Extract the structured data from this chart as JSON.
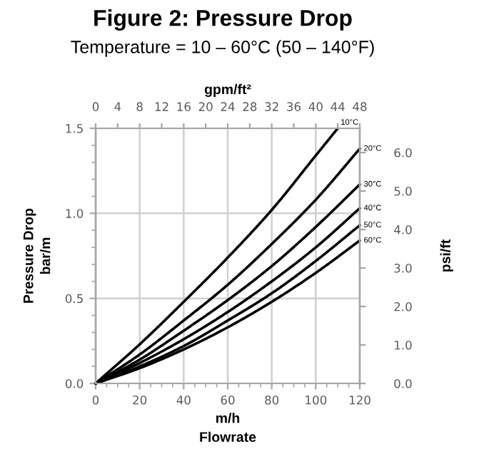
{
  "chart_data": {
    "type": "line",
    "title": "Figure 2: Pressure Drop",
    "subtitle": "Temperature = 10 – 60°C (50 – 140°F)",
    "xlabel": "m/h\nFlowrate",
    "ylabel": "Pressure Drop\nbar/m",
    "y2label": "psi/ft",
    "x2label": "gpm/ft²",
    "x": [
      0,
      20,
      40,
      60,
      80,
      100,
      120
    ],
    "series": [
      {
        "name": "10°C",
        "color": "#000000",
        "x": [
          0,
          20,
          40,
          60,
          80,
          100,
          110
        ],
        "values": [
          0,
          0.23,
          0.48,
          0.74,
          1.02,
          1.34,
          1.5
        ]
      },
      {
        "name": "20°C",
        "color": "#000000",
        "values": [
          0,
          0.17,
          0.37,
          0.58,
          0.82,
          1.08,
          1.38
        ]
      },
      {
        "name": "30°C",
        "color": "#000000",
        "values": [
          0,
          0.14,
          0.31,
          0.49,
          0.69,
          0.92,
          1.17
        ]
      },
      {
        "name": "40°C",
        "color": "#000000",
        "values": [
          0,
          0.12,
          0.26,
          0.42,
          0.6,
          0.8,
          1.03
        ]
      },
      {
        "name": "50°C",
        "color": "#000000",
        "values": [
          0,
          0.1,
          0.22,
          0.37,
          0.53,
          0.72,
          0.93
        ]
      },
      {
        "name": "60°C",
        "color": "#000000",
        "values": [
          0,
          0.09,
          0.2,
          0.33,
          0.48,
          0.65,
          0.84
        ]
      }
    ],
    "xlim": [
      0,
      120
    ],
    "xticks": [
      0,
      {
        "value": 5,
        "label": null
      },
      {
        "value": 10,
        "label": null
      },
      {
        "value": 15,
        "label": null
      },
      20,
      {
        "value": 25,
        "label": null
      },
      {
        "value": 30,
        "label": null
      },
      {
        "value": 35,
        "label": null
      },
      40,
      {
        "value": 45,
        "label": null
      },
      {
        "value": 50,
        "label": null
      },
      {
        "value": 55,
        "label": null
      },
      60,
      {
        "value": 65,
        "label": null
      },
      {
        "value": 70,
        "label": null
      },
      {
        "value": 75,
        "label": null
      },
      80,
      {
        "value": 85,
        "label": null
      },
      {
        "value": 90,
        "label": null
      },
      {
        "value": 95,
        "label": null
      },
      100,
      {
        "value": 105,
        "label": null
      },
      {
        "value": 110,
        "label": null
      },
      {
        "value": 115,
        "label": null
      },
      120
    ],
    "ylim": [
      0,
      1.5
    ],
    "yticks": [
      {
        "value": 0,
        "label": "0.0"
      },
      {
        "value": 0.1,
        "label": null
      },
      {
        "value": 0.2,
        "label": null
      },
      {
        "value": 0.3,
        "label": null
      },
      {
        "value": 0.4,
        "label": null
      },
      0.5,
      {
        "value": 0.6,
        "label": null
      },
      {
        "value": 0.7,
        "label": null
      },
      {
        "value": 0.8,
        "label": null
      },
      {
        "value": 0.9,
        "label": null
      },
      {
        "value": 1,
        "label": "1.0"
      },
      {
        "value": 1.1,
        "label": null
      },
      {
        "value": 1.2,
        "label": null
      },
      {
        "value": 1.3,
        "label": null
      },
      {
        "value": 1.4,
        "label": null
      },
      1.5
    ],
    "x2lim": [
      0,
      48
    ],
    "x2ticks": [
      0,
      4,
      8,
      12,
      16,
      20,
      24,
      28,
      32,
      36,
      40,
      44,
      48
    ],
    "y2lim": [
      0,
      6.63
    ],
    "y2ticks": [
      {
        "value": 0,
        "label": "0.0"
      },
      {
        "value": 1,
        "label": "1.0"
      },
      {
        "value": 2,
        "label": "2.0"
      },
      {
        "value": 3,
        "label": "3.0"
      },
      {
        "value": 4,
        "label": "4.0"
      },
      {
        "value": 5,
        "label": "5.0"
      },
      {
        "value": 6,
        "label": "6.0"
      }
    ],
    "grid": true,
    "line_style": "solid"
  }
}
